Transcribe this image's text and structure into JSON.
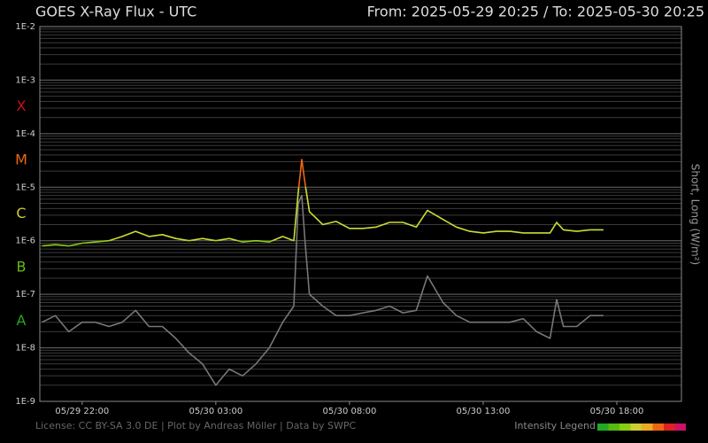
{
  "chart_data": {
    "type": "line",
    "title": "GOES X-Ray Flux - UTC",
    "subtitle": "From: 2025-05-29 20:25  /  To: 2025-05-30 20:25",
    "y_axis_label": "Short, Long (W/m²)",
    "footer": "License: CC BY-SA 3.0 DE | Plot by Andreas Möller | Data by SWPC",
    "log_scale": true,
    "grid": true,
    "xlim": [
      "2025-05-29 20:25",
      "2025-05-30 20:25"
    ],
    "xticks": [
      {
        "value": "2025-05-29 22:00",
        "label": "05/29 22:00"
      },
      {
        "value": "2025-05-30 03:00",
        "label": "05/30 03:00"
      },
      {
        "value": "2025-05-30 08:00",
        "label": "05/30 08:00"
      },
      {
        "value": "2025-05-30 13:00",
        "label": "05/30 13:00"
      },
      {
        "value": "2025-05-30 18:00",
        "label": "05/30 18:00"
      }
    ],
    "ylim": [
      1e-09,
      0.01
    ],
    "yticks": [
      {
        "value": 1e-09,
        "label": "1E-9"
      },
      {
        "value": 1e-08,
        "label": "1E-8"
      },
      {
        "value": 1e-07,
        "label": "1E-7"
      },
      {
        "value": 1e-06,
        "label": "1E-6"
      },
      {
        "value": 1e-05,
        "label": "1E-5"
      },
      {
        "value": 0.0001,
        "label": "1E-4"
      },
      {
        "value": 0.001,
        "label": "1E-3"
      },
      {
        "value": 0.01,
        "label": "1E-2"
      }
    ],
    "flare_classes": [
      {
        "label": "A",
        "value": 1e-08,
        "color": "#22aa22"
      },
      {
        "label": "B",
        "value": 1e-07,
        "color": "#66bb11"
      },
      {
        "label": "C",
        "value": 1e-06,
        "color": "#cccc33"
      },
      {
        "label": "M",
        "value": 1e-05,
        "color": "#ee6611"
      },
      {
        "label": "X",
        "value": 0.0001,
        "color": "#cc1111"
      }
    ],
    "intensity_legend": {
      "label": "Intensity Legend",
      "colors": [
        "#22aa22",
        "#55bb11",
        "#88cc11",
        "#cccc33",
        "#eeaa22",
        "#ee6611",
        "#dd2222",
        "#cc1166"
      ]
    },
    "x": [
      "2025-05-29 20:30",
      "2025-05-29 21:00",
      "2025-05-29 21:30",
      "2025-05-29 22:00",
      "2025-05-29 22:30",
      "2025-05-29 23:00",
      "2025-05-29 23:30",
      "2025-05-30 00:00",
      "2025-05-30 00:30",
      "2025-05-30 01:00",
      "2025-05-30 01:30",
      "2025-05-30 02:00",
      "2025-05-30 02:30",
      "2025-05-30 03:00",
      "2025-05-30 03:30",
      "2025-05-30 04:00",
      "2025-05-30 04:30",
      "2025-05-30 05:00",
      "2025-05-30 05:30",
      "2025-05-30 05:55",
      "2025-05-30 06:05",
      "2025-05-30 06:13",
      "2025-05-30 06:20",
      "2025-05-30 06:30",
      "2025-05-30 07:00",
      "2025-05-30 07:30",
      "2025-05-30 08:00",
      "2025-05-30 08:30",
      "2025-05-30 09:00",
      "2025-05-30 09:30",
      "2025-05-30 10:00",
      "2025-05-30 10:30",
      "2025-05-30 10:55",
      "2025-05-30 11:30",
      "2025-05-30 12:00",
      "2025-05-30 12:30",
      "2025-05-30 13:00",
      "2025-05-30 13:30",
      "2025-05-30 14:00",
      "2025-05-30 14:30",
      "2025-05-30 15:00",
      "2025-05-30 15:30",
      "2025-05-30 15:45",
      "2025-05-30 16:00",
      "2025-05-30 16:30",
      "2025-05-30 17:00",
      "2025-05-30 17:30"
    ],
    "series": [
      {
        "name": "Short",
        "color": "#777777",
        "values": [
          3e-08,
          4e-08,
          2e-08,
          3e-08,
          3e-08,
          2.5e-08,
          3e-08,
          5e-08,
          2.5e-08,
          2.5e-08,
          1.5e-08,
          8e-09,
          5e-09,
          2e-09,
          4e-09,
          3e-09,
          5e-09,
          1e-08,
          3e-08,
          6e-08,
          5e-06,
          7e-06,
          1e-06,
          1e-07,
          6e-08,
          4e-08,
          4e-08,
          4.5e-08,
          5e-08,
          6e-08,
          4.5e-08,
          5e-08,
          2.2e-07,
          7e-08,
          4e-08,
          3e-08,
          3e-08,
          3e-08,
          3e-08,
          3.5e-08,
          2e-08,
          1.5e-08,
          8e-08,
          2.5e-08,
          2.5e-08,
          4e-08,
          4e-08
        ]
      },
      {
        "name": "Long",
        "color": "#ccdd33",
        "values": [
          8e-07,
          8.5e-07,
          8e-07,
          9e-07,
          9.5e-07,
          1e-06,
          1.2e-06,
          1.5e-06,
          1.2e-06,
          1.3e-06,
          1.1e-06,
          1e-06,
          1.1e-06,
          1e-06,
          1.1e-06,
          9.5e-07,
          1e-06,
          9.5e-07,
          1.2e-06,
          1e-06,
          8e-06,
          3.3e-05,
          1.2e-05,
          3.5e-06,
          2e-06,
          2.3e-06,
          1.7e-06,
          1.7e-06,
          1.8e-06,
          2.2e-06,
          2.2e-06,
          1.8e-06,
          3.7e-06,
          2.5e-06,
          1.8e-06,
          1.5e-06,
          1.4e-06,
          1.5e-06,
          1.5e-06,
          1.4e-06,
          1.4e-06,
          1.4e-06,
          2.2e-06,
          1.6e-06,
          1.5e-06,
          1.6e-06,
          1.6e-06
        ]
      }
    ]
  }
}
